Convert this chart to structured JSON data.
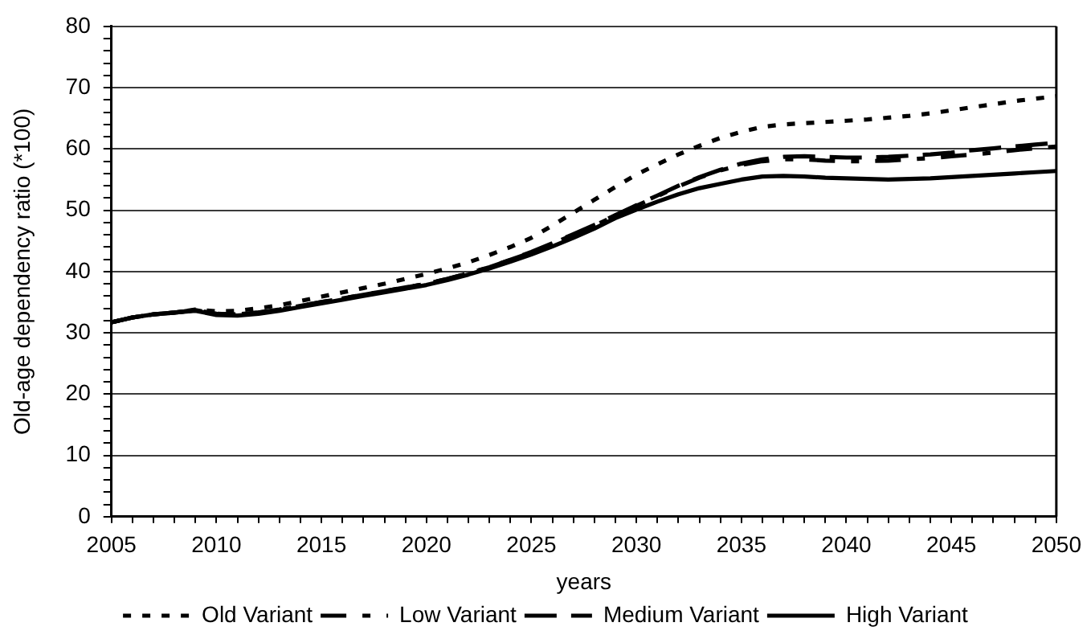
{
  "chart_data": {
    "type": "line",
    "xlabel": "years",
    "ylabel": "Old-age dependency ratio (*100)",
    "x": [
      2005,
      2006,
      2007,
      2008,
      2009,
      2010,
      2011,
      2012,
      2013,
      2014,
      2015,
      2016,
      2017,
      2018,
      2019,
      2020,
      2021,
      2022,
      2023,
      2024,
      2025,
      2026,
      2027,
      2028,
      2029,
      2030,
      2031,
      2032,
      2033,
      2034,
      2035,
      2036,
      2037,
      2038,
      2039,
      2040,
      2041,
      2042,
      2043,
      2044,
      2045,
      2046,
      2047,
      2048,
      2049,
      2050
    ],
    "series": [
      {
        "name": "Old Variant",
        "color": "#000000",
        "line_style": "dotted",
        "values": [
          31.7,
          32.5,
          33.0,
          33.3,
          33.8,
          33.5,
          33.6,
          34.0,
          34.5,
          35.2,
          35.9,
          36.6,
          37.3,
          38.0,
          38.8,
          39.6,
          40.5,
          41.5,
          42.7,
          44.0,
          45.5,
          47.5,
          49.6,
          51.7,
          53.8,
          55.8,
          57.5,
          59.1,
          60.5,
          61.8,
          62.8,
          63.6,
          64.0,
          64.2,
          64.4,
          64.6,
          64.8,
          65.1,
          65.4,
          65.8,
          66.3,
          66.8,
          67.3,
          67.8,
          68.2,
          68.6
        ]
      },
      {
        "name": "Low Variant",
        "color": "#000000",
        "line_style": "dashdot",
        "values": [
          31.7,
          32.5,
          33.0,
          33.3,
          33.7,
          33.1,
          33.0,
          33.3,
          33.8,
          34.4,
          35.0,
          35.6,
          36.2,
          36.8,
          37.4,
          38.0,
          38.8,
          39.7,
          40.7,
          41.9,
          43.1,
          44.5,
          46.0,
          47.5,
          49.1,
          50.7,
          52.3,
          53.9,
          55.3,
          56.5,
          57.4,
          58.0,
          58.3,
          58.3,
          58.1,
          58.0,
          58.0,
          58.1,
          58.3,
          58.5,
          58.8,
          59.1,
          59.4,
          59.8,
          60.1,
          60.4
        ]
      },
      {
        "name": "Medium Variant",
        "color": "#000000",
        "line_style": "dashed",
        "values": [
          31.7,
          32.5,
          33.0,
          33.3,
          33.7,
          33.1,
          33.0,
          33.3,
          33.8,
          34.4,
          35.0,
          35.6,
          36.2,
          36.8,
          37.4,
          38.0,
          38.8,
          39.7,
          40.7,
          41.9,
          43.2,
          44.6,
          46.1,
          47.6,
          49.2,
          50.8,
          52.4,
          54.0,
          55.4,
          56.6,
          57.6,
          58.3,
          58.7,
          58.8,
          58.7,
          58.6,
          58.6,
          58.7,
          58.9,
          59.1,
          59.4,
          59.8,
          60.1,
          60.4,
          60.7,
          61.0
        ]
      },
      {
        "name": "High Variant",
        "color": "#000000",
        "line_style": "solid",
        "values": [
          31.7,
          32.5,
          33.0,
          33.3,
          33.6,
          32.9,
          32.8,
          33.1,
          33.6,
          34.2,
          34.8,
          35.4,
          36.0,
          36.6,
          37.2,
          37.8,
          38.6,
          39.5,
          40.5,
          41.6,
          42.8,
          44.1,
          45.5,
          47.0,
          48.7,
          50.1,
          51.4,
          52.6,
          53.6,
          54.3,
          55.0,
          55.5,
          55.6,
          55.5,
          55.3,
          55.2,
          55.1,
          55.0,
          55.1,
          55.2,
          55.4,
          55.6,
          55.8,
          56.0,
          56.2,
          56.4
        ]
      }
    ],
    "xlim": [
      2005,
      2050
    ],
    "ylim": [
      0,
      80
    ],
    "xticks": [
      2005,
      {
        "value": 2006,
        "label": null
      },
      {
        "value": 2007,
        "label": null
      },
      {
        "value": 2008,
        "label": null
      },
      {
        "value": 2009,
        "label": null
      },
      2010,
      {
        "value": 2011,
        "label": null
      },
      {
        "value": 2012,
        "label": null
      },
      {
        "value": 2013,
        "label": null
      },
      {
        "value": 2014,
        "label": null
      },
      2015,
      {
        "value": 2016,
        "label": null
      },
      {
        "value": 2017,
        "label": null
      },
      {
        "value": 2018,
        "label": null
      },
      {
        "value": 2019,
        "label": null
      },
      2020,
      {
        "value": 2021,
        "label": null
      },
      {
        "value": 2022,
        "label": null
      },
      {
        "value": 2023,
        "label": null
      },
      {
        "value": 2024,
        "label": null
      },
      2025,
      {
        "value": 2026,
        "label": null
      },
      {
        "value": 2027,
        "label": null
      },
      {
        "value": 2028,
        "label": null
      },
      {
        "value": 2029,
        "label": null
      },
      2030,
      {
        "value": 2031,
        "label": null
      },
      {
        "value": 2032,
        "label": null
      },
      {
        "value": 2033,
        "label": null
      },
      {
        "value": 2034,
        "label": null
      },
      2035,
      {
        "value": 2036,
        "label": null
      },
      {
        "value": 2037,
        "label": null
      },
      {
        "value": 2038,
        "label": null
      },
      {
        "value": 2039,
        "label": null
      },
      2040,
      {
        "value": 2041,
        "label": null
      },
      {
        "value": 2042,
        "label": null
      },
      {
        "value": 2043,
        "label": null
      },
      {
        "value": 2044,
        "label": null
      },
      2045,
      {
        "value": 2046,
        "label": null
      },
      {
        "value": 2047,
        "label": null
      },
      {
        "value": 2048,
        "label": null
      },
      {
        "value": 2049,
        "label": null
      },
      2050
    ],
    "yticks": [
      0,
      {
        "value": 2,
        "label": null
      },
      {
        "value": 4,
        "label": null
      },
      {
        "value": 6,
        "label": null
      },
      {
        "value": 8,
        "label": null
      },
      10,
      {
        "value": 12,
        "label": null
      },
      {
        "value": 14,
        "label": null
      },
      {
        "value": 16,
        "label": null
      },
      {
        "value": 18,
        "label": null
      },
      20,
      {
        "value": 22,
        "label": null
      },
      {
        "value": 24,
        "label": null
      },
      {
        "value": 26,
        "label": null
      },
      {
        "value": 28,
        "label": null
      },
      30,
      {
        "value": 32,
        "label": null
      },
      {
        "value": 34,
        "label": null
      },
      {
        "value": 36,
        "label": null
      },
      {
        "value": 38,
        "label": null
      },
      40,
      {
        "value": 42,
        "label": null
      },
      {
        "value": 44,
        "label": null
      },
      {
        "value": 46,
        "label": null
      },
      {
        "value": 48,
        "label": null
      },
      50,
      {
        "value": 52,
        "label": null
      },
      {
        "value": 54,
        "label": null
      },
      {
        "value": 56,
        "label": null
      },
      {
        "value": 58,
        "label": null
      },
      60,
      {
        "value": 62,
        "label": null
      },
      {
        "value": 64,
        "label": null
      },
      {
        "value": 66,
        "label": null
      },
      {
        "value": 68,
        "label": null
      },
      70,
      {
        "value": 72,
        "label": null
      },
      {
        "value": 74,
        "label": null
      },
      {
        "value": 76,
        "label": null
      },
      {
        "value": 78,
        "label": null
      },
      80
    ],
    "grid": "y",
    "legend": "bottom",
    "marker": "none"
  }
}
